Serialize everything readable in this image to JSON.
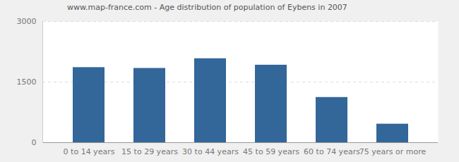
{
  "chart_data": {
    "type": "bar",
    "title": "www.map-france.com - Age distribution of population of Eybens in 2007",
    "categories": [
      "0 to 14 years",
      "15 to 29 years",
      "30 to 44 years",
      "45 to 59 years",
      "60 to 74 years",
      "75 years or more"
    ],
    "values": [
      1860,
      1840,
      2080,
      1920,
      1120,
      460
    ],
    "color": "#336699",
    "ylim": [
      0,
      3000
    ],
    "yticks": [
      0,
      1500,
      3000
    ],
    "grid": true
  }
}
